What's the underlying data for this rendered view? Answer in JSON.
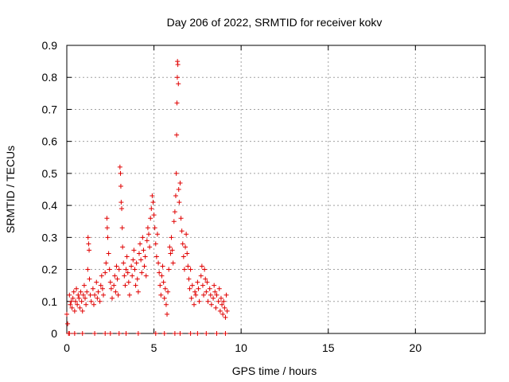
{
  "chart_data": {
    "type": "scatter",
    "title": "Day 206 of 2022, SRMTID for receiver kokv",
    "xlabel": "GPS time / hours",
    "ylabel": "SRMTID / TECUs",
    "xlim": [
      0,
      24
    ],
    "ylim": [
      0,
      0.9
    ],
    "xticks": [
      0,
      5,
      10,
      15,
      20
    ],
    "yticks": [
      0,
      0.1,
      0.2,
      0.3,
      0.4,
      0.5,
      0.6,
      0.7,
      0.8,
      0.9
    ],
    "grid": true,
    "marker": "+",
    "color": "#e00000",
    "series": [
      {
        "name": "SRMTID",
        "points": [
          [
            0.0,
            0.06
          ],
          [
            0.05,
            0.03
          ],
          [
            0.1,
            0.0
          ],
          [
            0.15,
            0.12
          ],
          [
            0.2,
            0.09
          ],
          [
            0.25,
            0.1
          ],
          [
            0.3,
            0.08
          ],
          [
            0.35,
            0.11
          ],
          [
            0.4,
            0.13
          ],
          [
            0.45,
            0.07
          ],
          [
            0.5,
            0.1
          ],
          [
            0.55,
            0.14
          ],
          [
            0.6,
            0.09
          ],
          [
            0.65,
            0.12
          ],
          [
            0.7,
            0.11
          ],
          [
            0.75,
            0.08
          ],
          [
            0.8,
            0.13
          ],
          [
            0.85,
            0.1
          ],
          [
            0.9,
            0.07
          ],
          [
            0.95,
            0.12
          ],
          [
            1.0,
            0.15
          ],
          [
            1.05,
            0.11
          ],
          [
            1.1,
            0.09
          ],
          [
            1.15,
            0.13
          ],
          [
            1.2,
            0.2
          ],
          [
            1.22,
            0.3
          ],
          [
            1.25,
            0.28
          ],
          [
            1.28,
            0.26
          ],
          [
            1.3,
            0.17
          ],
          [
            1.35,
            0.12
          ],
          [
            1.4,
            0.1
          ],
          [
            1.5,
            0.14
          ],
          [
            1.55,
            0.09
          ],
          [
            1.6,
            0.12
          ],
          [
            1.7,
            0.16
          ],
          [
            1.75,
            0.11
          ],
          [
            1.8,
            0.13
          ],
          [
            1.9,
            0.1
          ],
          [
            1.95,
            0.15
          ],
          [
            2.0,
            0.18
          ],
          [
            2.05,
            0.14
          ],
          [
            2.1,
            0.12
          ],
          [
            2.2,
            0.19
          ],
          [
            2.25,
            0.22
          ],
          [
            2.3,
            0.36
          ],
          [
            2.32,
            0.33
          ],
          [
            2.35,
            0.3
          ],
          [
            2.4,
            0.25
          ],
          [
            2.45,
            0.2
          ],
          [
            2.5,
            0.16
          ],
          [
            2.55,
            0.14
          ],
          [
            2.6,
            0.11
          ],
          [
            2.7,
            0.15
          ],
          [
            2.75,
            0.18
          ],
          [
            2.8,
            0.13
          ],
          [
            2.85,
            0.21
          ],
          [
            2.9,
            0.17
          ],
          [
            2.95,
            0.12
          ],
          [
            3.0,
            0.2
          ],
          [
            3.05,
            0.52
          ],
          [
            3.08,
            0.5
          ],
          [
            3.1,
            0.46
          ],
          [
            3.12,
            0.41
          ],
          [
            3.15,
            0.39
          ],
          [
            3.18,
            0.33
          ],
          [
            3.2,
            0.27
          ],
          [
            3.25,
            0.22
          ],
          [
            3.3,
            0.18
          ],
          [
            3.35,
            0.15
          ],
          [
            3.4,
            0.2
          ],
          [
            3.45,
            0.24
          ],
          [
            3.5,
            0.19
          ],
          [
            3.55,
            0.16
          ],
          [
            3.6,
            0.12
          ],
          [
            3.7,
            0.21
          ],
          [
            3.75,
            0.18
          ],
          [
            3.8,
            0.23
          ],
          [
            3.85,
            0.26
          ],
          [
            3.9,
            0.2
          ],
          [
            3.95,
            0.15
          ],
          [
            4.0,
            0.22
          ],
          [
            4.05,
            0.17
          ],
          [
            4.1,
            0.13
          ],
          [
            4.15,
            0.25
          ],
          [
            4.2,
            0.28
          ],
          [
            4.25,
            0.23
          ],
          [
            4.3,
            0.19
          ],
          [
            4.35,
            0.3
          ],
          [
            4.4,
            0.26
          ],
          [
            4.45,
            0.21
          ],
          [
            4.5,
            0.24
          ],
          [
            4.55,
            0.18
          ],
          [
            4.6,
            0.29
          ],
          [
            4.65,
            0.33
          ],
          [
            4.7,
            0.31
          ],
          [
            4.75,
            0.27
          ],
          [
            4.8,
            0.36
          ],
          [
            4.85,
            0.39
          ],
          [
            4.9,
            0.43
          ],
          [
            4.95,
            0.41
          ],
          [
            5.0,
            0.37
          ],
          [
            5.05,
            0.33
          ],
          [
            5.1,
            0.28
          ],
          [
            5.15,
            0.24
          ],
          [
            5.2,
            0.31
          ],
          [
            5.25,
            0.22
          ],
          [
            5.3,
            0.19
          ],
          [
            5.35,
            0.15
          ],
          [
            5.4,
            0.12
          ],
          [
            5.45,
            0.18
          ],
          [
            5.5,
            0.21
          ],
          [
            5.55,
            0.16
          ],
          [
            5.6,
            0.11
          ],
          [
            5.65,
            0.14
          ],
          [
            5.7,
            0.09
          ],
          [
            5.75,
            0.06
          ],
          [
            5.8,
            0.13
          ],
          [
            5.85,
            0.2
          ],
          [
            5.9,
            0.27
          ],
          [
            5.95,
            0.25
          ],
          [
            6.0,
            0.3
          ],
          [
            6.05,
            0.26
          ],
          [
            6.1,
            0.22
          ],
          [
            6.15,
            0.35
          ],
          [
            6.2,
            0.38
          ],
          [
            6.25,
            0.43
          ],
          [
            6.28,
            0.5
          ],
          [
            6.3,
            0.62
          ],
          [
            6.32,
            0.72
          ],
          [
            6.34,
            0.8
          ],
          [
            6.35,
            0.85
          ],
          [
            6.37,
            0.84
          ],
          [
            6.4,
            0.78
          ],
          [
            6.42,
            0.45
          ],
          [
            6.45,
            0.41
          ],
          [
            6.5,
            0.47
          ],
          [
            6.55,
            0.36
          ],
          [
            6.6,
            0.32
          ],
          [
            6.65,
            0.28
          ],
          [
            6.7,
            0.24
          ],
          [
            6.75,
            0.2
          ],
          [
            6.8,
            0.27
          ],
          [
            6.85,
            0.31
          ],
          [
            6.9,
            0.25
          ],
          [
            6.95,
            0.21
          ],
          [
            7.0,
            0.17
          ],
          [
            7.05,
            0.14
          ],
          [
            7.1,
            0.2
          ],
          [
            7.15,
            0.11
          ],
          [
            7.2,
            0.15
          ],
          [
            7.3,
            0.09
          ],
          [
            7.35,
            0.13
          ],
          [
            7.4,
            0.12
          ],
          [
            7.5,
            0.16
          ],
          [
            7.55,
            0.14
          ],
          [
            7.6,
            0.1
          ],
          [
            7.7,
            0.18
          ],
          [
            7.75,
            0.21
          ],
          [
            7.8,
            0.15
          ],
          [
            7.85,
            0.12
          ],
          [
            7.9,
            0.2
          ],
          [
            7.95,
            0.17
          ],
          [
            8.0,
            0.13
          ],
          [
            8.05,
            0.16
          ],
          [
            8.1,
            0.1
          ],
          [
            8.2,
            0.14
          ],
          [
            8.25,
            0.12
          ],
          [
            8.3,
            0.09
          ],
          [
            8.4,
            0.11
          ],
          [
            8.45,
            0.15
          ],
          [
            8.5,
            0.13
          ],
          [
            8.55,
            0.08
          ],
          [
            8.6,
            0.12
          ],
          [
            8.7,
            0.1
          ],
          [
            8.75,
            0.14
          ],
          [
            8.8,
            0.07
          ],
          [
            8.85,
            0.11
          ],
          [
            8.9,
            0.09
          ],
          [
            8.95,
            0.06
          ],
          [
            9.0,
            0.1
          ],
          [
            9.05,
            0.08
          ],
          [
            9.1,
            0.05
          ],
          [
            9.15,
            0.12
          ],
          [
            9.2,
            0.07
          ],
          [
            0.15,
            0.0
          ],
          [
            0.45,
            0.0
          ],
          [
            0.9,
            0.0
          ],
          [
            1.6,
            0.0
          ],
          [
            2.2,
            0.0
          ],
          [
            2.5,
            0.0
          ],
          [
            3.0,
            0.0
          ],
          [
            3.4,
            0.0
          ],
          [
            4.1,
            0.0
          ],
          [
            5.1,
            0.0
          ],
          [
            5.6,
            0.0
          ],
          [
            6.2,
            0.0
          ],
          [
            6.5,
            0.0
          ],
          [
            7.1,
            0.0
          ],
          [
            7.5,
            0.0
          ],
          [
            8.0,
            0.0
          ],
          [
            8.6,
            0.0
          ],
          [
            9.1,
            0.0
          ]
        ]
      }
    ]
  }
}
